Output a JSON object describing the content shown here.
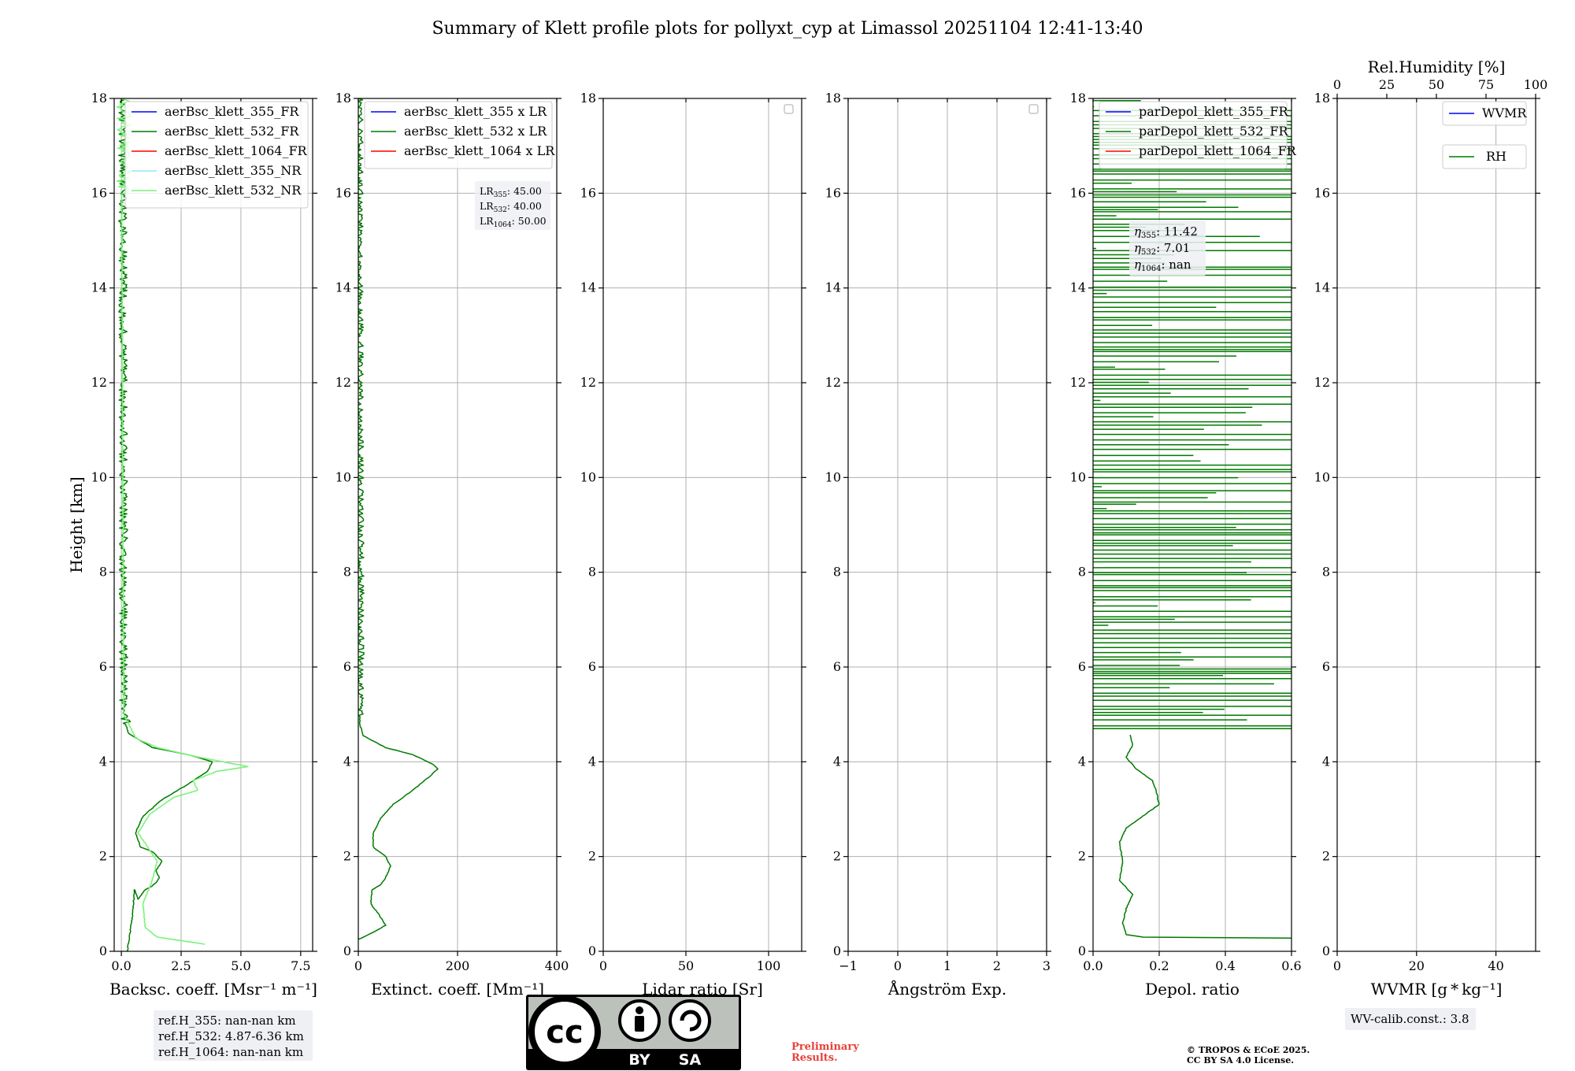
{
  "title": "Summary of Klett profile plots for pollyxt_cyp at Limassol 20251104 12:41-13:40",
  "colors": {
    "ch355": "#0000ff",
    "ch532": "#007a00",
    "ch1064": "#ff0000",
    "ch355nr": "#8de8f2",
    "ch532nr": "#7cf27c",
    "grid": "#b0b0b0",
    "boxbg": "#eef0f4",
    "preliminary": "#e8413a"
  },
  "chart_data": [
    {
      "type": "line",
      "id": "bsc",
      "xlabel": "Backsc. coeff. [Msr⁻¹ m⁻¹]",
      "ylabel": "Height [km]",
      "xlim": [
        -0.3,
        8.0
      ],
      "ylim": [
        0,
        18
      ],
      "xticks": [
        0.0,
        2.5,
        5.0,
        7.5
      ],
      "xtick_labels": [
        "0.0",
        "2.5",
        "5.0",
        "7.5"
      ],
      "yticks": [
        0,
        2,
        4,
        6,
        8,
        10,
        12,
        14,
        16,
        18
      ],
      "legend": {
        "position": "top-right",
        "entries": [
          {
            "label": "aerBsc_klett_355_FR",
            "color_key": "ch355"
          },
          {
            "label": "aerBsc_klett_532_FR",
            "color_key": "ch532"
          },
          {
            "label": "aerBsc_klett_1064_FR",
            "color_key": "ch1064"
          },
          {
            "label": "aerBsc_klett_355_NR",
            "color_key": "ch355nr"
          },
          {
            "label": "aerBsc_klett_532_NR",
            "color_key": "ch532nr"
          }
        ]
      },
      "series": [
        {
          "name": "aerBsc_klett_532_FR",
          "color_key": "ch532",
          "profile": [
            [
              0.25,
              0.0
            ],
            [
              0.45,
              0.7
            ],
            [
              0.55,
              1.3
            ],
            [
              0.7,
              1.1
            ],
            [
              1.0,
              1.3
            ],
            [
              1.2,
              1.35
            ],
            [
              1.45,
              1.45
            ],
            [
              1.6,
              1.55
            ],
            [
              1.45,
              1.7
            ],
            [
              1.7,
              1.9
            ],
            [
              1.3,
              2.1
            ],
            [
              0.8,
              2.2
            ],
            [
              0.6,
              2.5
            ],
            [
              0.9,
              2.85
            ],
            [
              1.7,
              3.2
            ],
            [
              2.7,
              3.5
            ],
            [
              3.6,
              3.8
            ],
            [
              3.8,
              4.0
            ],
            [
              2.8,
              4.15
            ],
            [
              1.3,
              4.3
            ],
            [
              0.3,
              4.6
            ],
            [
              0.05,
              5.0
            ],
            [
              0.0,
              18.0
            ]
          ],
          "noise_from": 4.8,
          "noise_amp": 0.35
        },
        {
          "name": "aerBsc_klett_532_NR",
          "color_key": "ch532nr",
          "profile": [
            [
              3.5,
              0.15
            ],
            [
              1.5,
              0.3
            ],
            [
              1.0,
              0.5
            ],
            [
              0.9,
              1.0
            ],
            [
              1.3,
              1.5
            ],
            [
              1.5,
              1.9
            ],
            [
              1.1,
              2.2
            ],
            [
              0.7,
              2.5
            ],
            [
              1.2,
              2.9
            ],
            [
              2.2,
              3.25
            ],
            [
              3.2,
              3.4
            ],
            [
              3.0,
              3.6
            ],
            [
              4.0,
              3.8
            ],
            [
              5.3,
              3.9
            ],
            [
              3.2,
              4.1
            ],
            [
              1.5,
              4.3
            ],
            [
              0.6,
              4.5
            ],
            [
              0.3,
              4.8
            ],
            [
              0.1,
              5.0
            ],
            [
              0.0,
              18.0
            ]
          ],
          "noise_from": 16.0,
          "noise_amp": 0.6
        }
      ],
      "annotation": {
        "position": "below-axis",
        "lines": [
          "ref.H_355: nan-nan km",
          "ref.H_532: 4.87-6.36 km",
          "ref.H_1064: nan-nan km"
        ]
      }
    },
    {
      "type": "line",
      "id": "ext",
      "xlabel": "Extinct. coeff. [Mm⁻¹]",
      "xlim": [
        0,
        400
      ],
      "ylim": [
        0,
        18
      ],
      "xticks": [
        0,
        200,
        400
      ],
      "xtick_labels": [
        "0",
        "200",
        "400"
      ],
      "yticks": [
        0,
        2,
        4,
        6,
        8,
        10,
        12,
        14,
        16,
        18
      ],
      "legend": {
        "position": "top-right",
        "entries": [
          {
            "label": "aerBsc_klett_355 x LR",
            "color_key": "ch355"
          },
          {
            "label": "aerBsc_klett_532 x LR",
            "color_key": "ch532"
          },
          {
            "label": "aerBsc_klett_1064 x LR",
            "color_key": "ch1064"
          }
        ]
      },
      "series": [
        {
          "name": "aerBsc_klett_532 x LR",
          "color_key": "ch532",
          "profile": [
            [
              0,
              0.25
            ],
            [
              30,
              0.4
            ],
            [
              55,
              0.55
            ],
            [
              40,
              0.8
            ],
            [
              25,
              1.0
            ],
            [
              28,
              1.3
            ],
            [
              45,
              1.4
            ],
            [
              55,
              1.55
            ],
            [
              65,
              1.8
            ],
            [
              55,
              2.0
            ],
            [
              30,
              2.2
            ],
            [
              30,
              2.5
            ],
            [
              45,
              2.8
            ],
            [
              70,
              3.1
            ],
            [
              110,
              3.4
            ],
            [
              145,
              3.7
            ],
            [
              160,
              3.85
            ],
            [
              150,
              3.95
            ],
            [
              110,
              4.15
            ],
            [
              55,
              4.3
            ],
            [
              10,
              4.55
            ],
            [
              3,
              4.8
            ],
            [
              0,
              18.0
            ]
          ],
          "noise_from": 4.9,
          "noise_amp": 14
        }
      ],
      "lr_box": {
        "lines": [
          {
            "prefix": "LR",
            "sub": "355",
            "value": ": 45.00"
          },
          {
            "prefix": "LR",
            "sub": "532",
            "value": ": 40.00"
          },
          {
            "prefix": "LR",
            "sub": "1064",
            "value": ": 50.00"
          }
        ]
      }
    },
    {
      "type": "line",
      "id": "lr",
      "xlabel": "Lidar ratio [Sr]",
      "xlim": [
        0,
        120
      ],
      "ylim": [
        0,
        18
      ],
      "xticks": [
        0,
        50,
        100
      ],
      "xtick_labels": [
        "0",
        "50",
        "100"
      ],
      "yticks": [
        0,
        2,
        4,
        6,
        8,
        10,
        12,
        14,
        16,
        18
      ],
      "legend": {
        "position": "top-right",
        "entries": []
      },
      "series": []
    },
    {
      "type": "line",
      "id": "ang",
      "xlabel": "Ångström Exp.",
      "xlim": [
        -1,
        3
      ],
      "ylim": [
        0,
        18
      ],
      "xticks": [
        -1,
        0,
        1,
        2,
        3
      ],
      "xtick_labels": [
        "−1",
        "0",
        "1",
        "2",
        "3"
      ],
      "yticks": [
        0,
        2,
        4,
        6,
        8,
        10,
        12,
        14,
        16,
        18
      ],
      "legend": {
        "position": "top-right",
        "entries": []
      },
      "series": []
    },
    {
      "type": "line",
      "id": "dep",
      "xlabel": "Depol. ratio",
      "xlim": [
        0,
        0.6
      ],
      "ylim": [
        0,
        18
      ],
      "xticks": [
        0.0,
        0.2,
        0.4,
        0.6
      ],
      "xtick_labels": [
        "0.0",
        "0.2",
        "0.4",
        "0.6"
      ],
      "yticks": [
        0,
        2,
        4,
        6,
        8,
        10,
        12,
        14,
        16,
        18
      ],
      "legend": {
        "position": "top-right",
        "entries": [
          {
            "label": "parDepol_klett_355_FR",
            "color_key": "ch355"
          },
          {
            "label": "parDepol_klett_532_FR",
            "color_key": "ch532"
          },
          {
            "label": "parDepol_klett_1064_FR",
            "color_key": "ch1064"
          }
        ]
      },
      "series": [
        {
          "name": "parDepol_klett_532_FR",
          "color_key": "ch532",
          "profile": [
            [
              0.6,
              0.28
            ],
            [
              0.15,
              0.3
            ],
            [
              0.1,
              0.35
            ],
            [
              0.09,
              0.6
            ],
            [
              0.1,
              0.9
            ],
            [
              0.12,
              1.2
            ],
            [
              0.08,
              1.5
            ],
            [
              0.09,
              1.9
            ],
            [
              0.08,
              2.3
            ],
            [
              0.1,
              2.6
            ],
            [
              0.15,
              2.85
            ],
            [
              0.2,
              3.1
            ],
            [
              0.19,
              3.4
            ],
            [
              0.18,
              3.6
            ],
            [
              0.13,
              3.85
            ],
            [
              0.1,
              4.1
            ],
            [
              0.12,
              4.35
            ],
            [
              0.11,
              4.6
            ]
          ],
          "spikes_from": 4.7,
          "spikes_to": 18.0
        }
      ],
      "eta_box": {
        "lines": [
          {
            "prefix": "η",
            "sub": "355",
            "value": ": 11.42"
          },
          {
            "prefix": "η",
            "sub": "532",
            "value": ": 7.01"
          },
          {
            "prefix": "η",
            "sub": "1064",
            "value": ": nan"
          }
        ]
      }
    },
    {
      "type": "line",
      "id": "wv",
      "xlabel": "WVMR [g * kg⁻¹]",
      "xlim": [
        0,
        50
      ],
      "ylim": [
        0,
        18
      ],
      "xticks": [
        0,
        20,
        40
      ],
      "xtick_labels": [
        "0",
        "20",
        "40"
      ],
      "yticks": [
        0,
        2,
        4,
        6,
        8,
        10,
        12,
        14,
        16,
        18
      ],
      "top_axis": {
        "label": "Rel.Humidity [%]",
        "xlim": [
          0,
          100
        ],
        "xticks": [
          0,
          25,
          50,
          75,
          100
        ],
        "xtick_labels": [
          "0",
          "25",
          "50",
          "75",
          "100"
        ]
      },
      "legend": {
        "position": "top-right",
        "entries": [
          {
            "label": "WVMR",
            "color_key": "ch355"
          },
          {
            "label": "RH",
            "color_key": "ch532"
          }
        ]
      },
      "series": [],
      "annotation": {
        "lines": [
          "WV-calib.const.: 3.8"
        ]
      }
    }
  ],
  "license": {
    "cc": "cc",
    "by": "BY",
    "sa": "SA"
  },
  "preliminary": [
    "Preliminary",
    "Results."
  ],
  "copyright": [
    "© TROPOS & ECoE 2025.",
    "CC BY SA 4.0 License."
  ]
}
